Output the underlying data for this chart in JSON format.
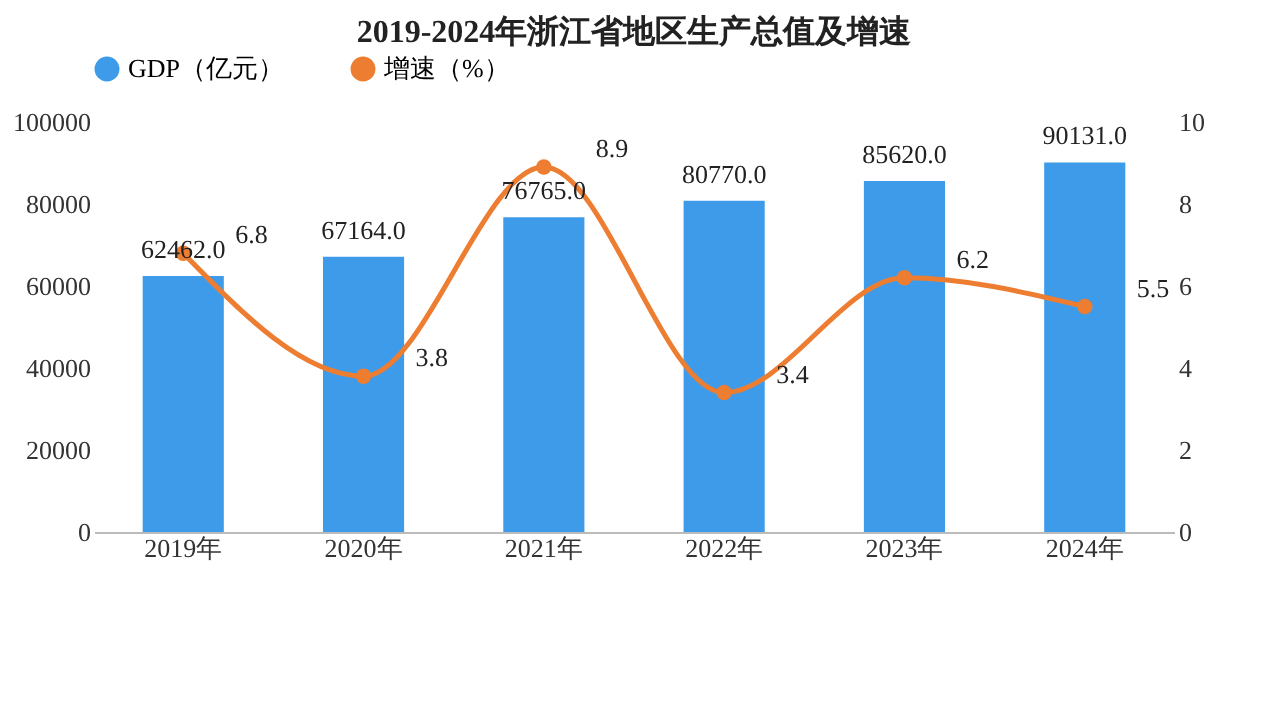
{
  "chart_data": {
    "type": "bar",
    "title": "2019-2024年浙江省地区生产总值及增速",
    "categories": [
      "2019年",
      "2020年",
      "2021年",
      "2022年",
      "2023年",
      "2024年"
    ],
    "series": [
      {
        "name": "GDP（亿元）",
        "color": "#3e9be9",
        "values": [
          62462,
          67164,
          76765,
          80770,
          85620,
          90131
        ],
        "value_labels": [
          "62462.0",
          "67164.0",
          "76765.0",
          "80770.0",
          "85620.0",
          "90131.0"
        ]
      },
      {
        "name": "增速（%）",
        "type": "line",
        "axis": "y2",
        "color": "#ed7d31",
        "values": [
          6.8,
          3.8,
          8.9,
          3.4,
          6.2,
          5.5
        ],
        "value_labels": [
          "6.8",
          "3.8",
          "8.9",
          "3.4",
          "6.2",
          "5.5"
        ]
      }
    ],
    "ylim": [
      0,
      100000
    ],
    "yticks": [
      0,
      20000,
      40000,
      60000,
      80000,
      100000
    ],
    "y2lim": [
      0,
      10
    ],
    "y2ticks": [
      0,
      2,
      4,
      6,
      8,
      10
    ],
    "legend": "top",
    "marker": "circle",
    "grid": false
  }
}
